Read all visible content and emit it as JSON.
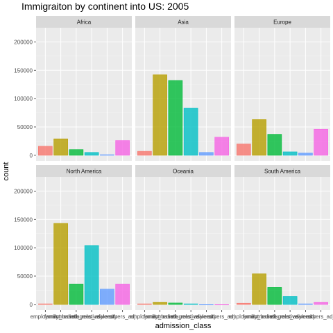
{
  "chart_data": {
    "type": "bar",
    "title": "Immigraiton by continent into US: 2005",
    "xlabel": "admission_class",
    "ylabel": "count",
    "ylim": [
      -10000,
      225000
    ],
    "yticks": [
      0,
      50000,
      100000,
      150000,
      200000
    ],
    "grid": true,
    "legend": "none",
    "categories": [
      "employment",
      "family_based",
      "immediate_relative",
      "refugees_asylees",
      "diversity",
      "others"
    ],
    "x_tick_labels": [
      "employment",
      "family_based",
      "immediate_relative",
      "refugees_asylees",
      "diversity",
      "others_adj"
    ],
    "category_colors": [
      "#F8766D",
      "#B79F00",
      "#00BA38",
      "#00BFC4",
      "#619CFF",
      "#F564E3"
    ],
    "panels": [
      {
        "name": "Africa",
        "values": [
          16000,
          29000,
          10000,
          5000,
          1000,
          26000
        ]
      },
      {
        "name": "Asia",
        "values": [
          7000,
          142000,
          132000,
          83000,
          5000,
          32000
        ]
      },
      {
        "name": "Europe",
        "values": [
          20000,
          63000,
          37000,
          6000,
          4000,
          46000
        ]
      },
      {
        "name": "North America",
        "values": [
          1000,
          143000,
          36000,
          104000,
          27000,
          36000
        ]
      },
      {
        "name": "Oceania",
        "values": [
          1000,
          4000,
          2500,
          1000,
          500,
          500
        ]
      },
      {
        "name": "South America",
        "values": [
          2000,
          54000,
          30000,
          14000,
          1000,
          4000
        ]
      }
    ]
  }
}
